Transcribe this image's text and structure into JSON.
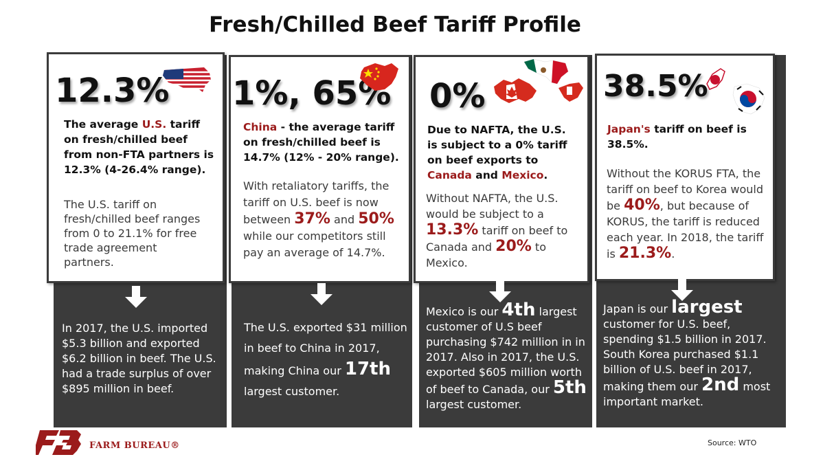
{
  "title": "Fresh/Chilled Beef Tariff Profile",
  "columns": [
    {
      "id": "us",
      "big_number": "12.3%",
      "flag_icon": "us-flag-map-icon",
      "bold_pre": "The average ",
      "bold_red": "U.S.",
      "bold_post": " tariff on fresh/chilled beef from non-FTA partners is 12.3% (4-26.4% range).",
      "plain": "The U.S. tariff on fresh/chilled beef ranges from 0 to 21.1% for free trade agreement partners.",
      "dark": "In 2017, the U.S. imported $5.3 billion and exported $6.2 billion in beef. The U.S. had a trade surplus of over $895 million in beef."
    },
    {
      "id": "china",
      "big_number": "1%, 65%",
      "flag_icon": "china-flag-map-icon",
      "bold_red": "China",
      "bold_post": " - the average tariff on fresh/chilled beef is 14.7% (12% - 20% range).",
      "plain_1": "With retaliatory tariffs, the tariff on U.S. beef is now between ",
      "plain_big_1": "37%",
      "plain_2": " and ",
      "plain_big_2": "50%",
      "plain_3": " while our competitors still pay an average of 14.7%.",
      "dark_1": "The U.S. exported $31 million in beef to China in 2017, making China our ",
      "dark_big": "17th",
      "dark_2": " largest customer."
    },
    {
      "id": "nafta",
      "big_number": "0%",
      "flag_icon": "canada-mexico-flag-map-icon",
      "bold_pre": "Due to NAFTA, the U.S. is subject to a 0% tariff on beef exports to ",
      "bold_red_1": "Canada",
      "bold_mid": " and ",
      "bold_red_2": "Mexico",
      "bold_post": ".",
      "plain_1": "Without NAFTA, the U.S. would be subject to a ",
      "plain_big_1": "13.3%",
      "plain_2": " tariff on beef to Canada and ",
      "plain_big_2": "20%",
      "plain_3": " to Mexico.",
      "dark_1": "Mexico is our ",
      "dark_big_1": "4th",
      "dark_2": " largest customer of U.S beef purchasing $742 million in in 2017. Also in 2017, the U.S. exported $605 million worth of beef to Canada, our ",
      "dark_big_2": "5th",
      "dark_3": " largest customer."
    },
    {
      "id": "japan-korea",
      "big_number": "38.5%",
      "flag_icon": "japan-korea-flag-map-icon",
      "bold_red": "Japan's",
      "bold_post": " tariff on beef is 38.5%.",
      "plain_1": "Without the KORUS FTA, the tariff on beef to Korea would be ",
      "plain_big_1": "40%",
      "plain_2": ", but because of KORUS, the tariff is reduced each year. In 2018, the tariff is ",
      "plain_big_2": "21.3%",
      "plain_3": ".",
      "dark_1": "Japan is our ",
      "dark_big_1": "largest",
      "dark_2": " customer for U.S. beef, spending $1.5 billion in 2017. South Korea purchased $1.1 billion of U.S. beef in 2017, making them our ",
      "dark_big_2": "2nd",
      "dark_3": " most important market."
    }
  ],
  "logo_text": "FARM BUREAU®",
  "source": "Source: WTO",
  "colors": {
    "dark_panel": "#3b3b3b",
    "accent_red": "#9b1b1b"
  }
}
